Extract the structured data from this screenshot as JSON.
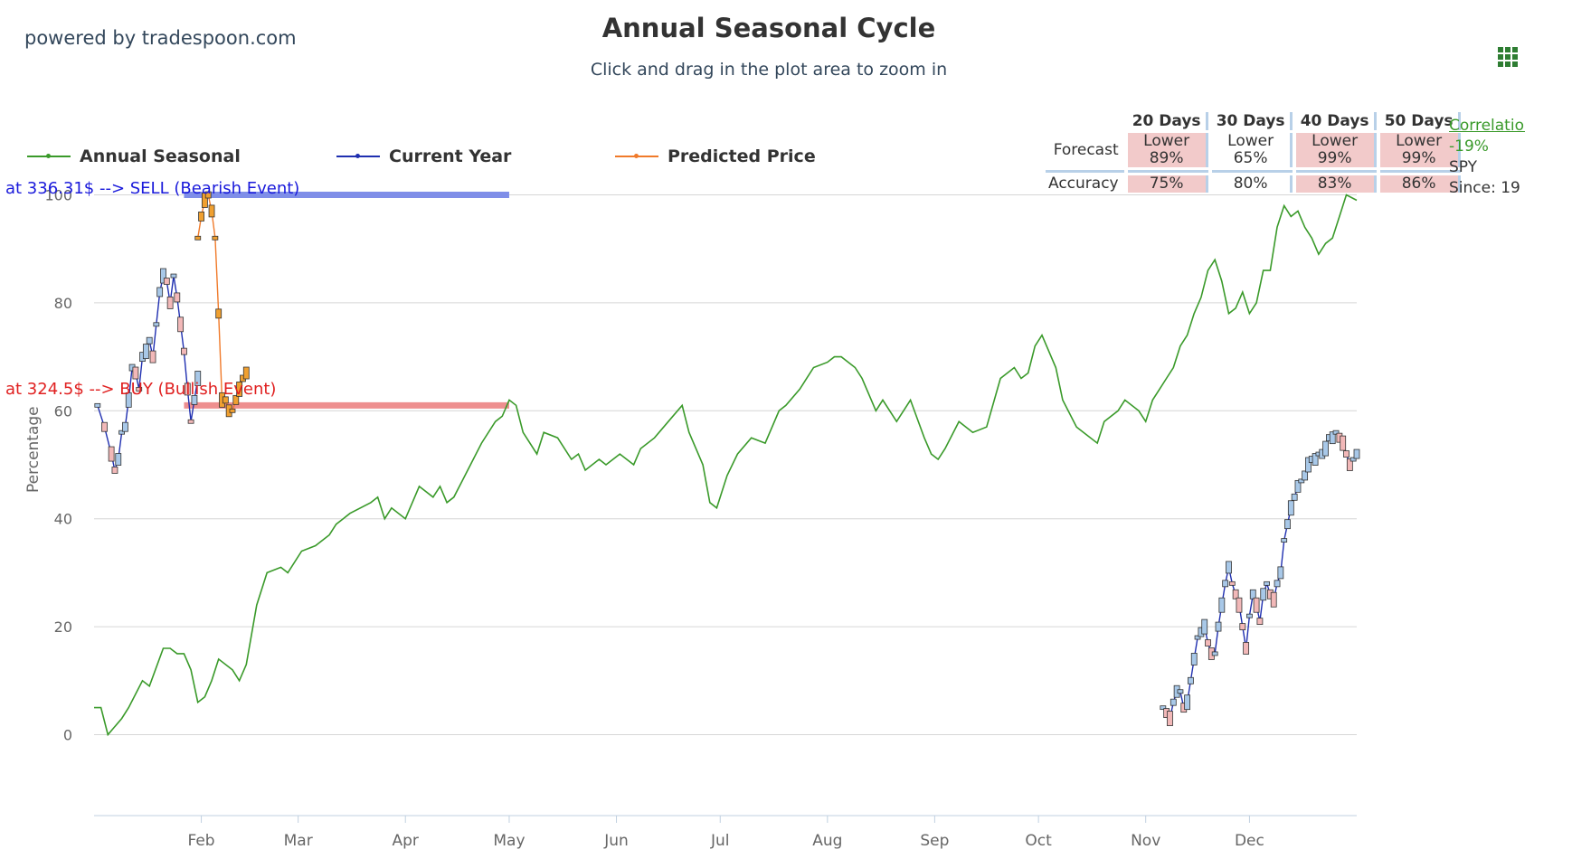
{
  "brand": "powered by tradespoon.com",
  "title": "Annual Seasonal Cycle",
  "subtitle": "Click and drag in the plot area to zoom in",
  "menu_icon": "hamburger-grid-icon",
  "legend": [
    {
      "name": "Annual Seasonal",
      "color": "#3a9a2a"
    },
    {
      "name": "Current Year",
      "color": "#1f2fb0"
    },
    {
      "name": "Predicted Price",
      "color": "#f07a2a"
    }
  ],
  "events": {
    "sell": "at 336.31$ --> SELL (Bearish Event)",
    "buy": "at 324.5$ --> BUY (Bullish Event)"
  },
  "forecast_table": {
    "headers": [
      "20 Days",
      "30 Days",
      "40 Days",
      "50 Days"
    ],
    "forecast_label": "Forecast",
    "accuracy_label": "Accuracy",
    "forecast": [
      {
        "dir": "Lower",
        "pct": "89%",
        "highlight": true
      },
      {
        "dir": "Lower",
        "pct": "65%",
        "highlight": false
      },
      {
        "dir": "Lower",
        "pct": "99%",
        "highlight": true
      },
      {
        "dir": "Lower",
        "pct": "99%",
        "highlight": true
      }
    ],
    "accuracy": [
      {
        "pct": "75%",
        "highlight": true
      },
      {
        "pct": "80%",
        "highlight": false
      },
      {
        "pct": "83%",
        "highlight": true
      },
      {
        "pct": "86%",
        "highlight": true
      }
    ]
  },
  "correlation": {
    "link": "Correlation",
    "value": "-19%",
    "ticker": "SPY",
    "since": "Since: 19"
  },
  "chart_data": {
    "type": "line",
    "title": "Annual Seasonal Cycle",
    "ylabel": "Percentage",
    "xlabel": "",
    "ylim": [
      -16,
      116
    ],
    "yticks": [
      0,
      20,
      40,
      60,
      80,
      100
    ],
    "x_domain": [
      0,
      365
    ],
    "xticks": [
      {
        "label": "Feb",
        "day": 31
      },
      {
        "label": "Mar",
        "day": 59
      },
      {
        "label": "Apr",
        "day": 90
      },
      {
        "label": "May",
        "day": 120
      },
      {
        "label": "Jun",
        "day": 151
      },
      {
        "label": "Jul",
        "day": 181
      },
      {
        "label": "Aug",
        "day": 212
      },
      {
        "label": "Sep",
        "day": 243
      },
      {
        "label": "Oct",
        "day": 273
      },
      {
        "label": "Nov",
        "day": 304
      },
      {
        "label": "Dec",
        "day": 334
      }
    ],
    "grid": true,
    "legend_position": "top",
    "series": [
      {
        "name": "Annual Seasonal",
        "color": "#3a9a2a",
        "x": [
          0,
          2,
          4,
          8,
          10,
          14,
          16,
          20,
          22,
          24,
          26,
          28,
          30,
          32,
          34,
          36,
          40,
          42,
          44,
          47,
          50,
          54,
          56,
          60,
          64,
          68,
          70,
          72,
          74,
          80,
          82,
          84,
          86,
          90,
          92,
          94,
          98,
          100,
          102,
          104,
          108,
          112,
          116,
          118,
          120,
          122,
          124,
          128,
          130,
          134,
          138,
          140,
          142,
          146,
          148,
          152,
          156,
          158,
          162,
          166,
          170,
          172,
          176,
          178,
          180,
          183,
          186,
          190,
          194,
          198,
          200,
          204,
          208,
          212,
          214,
          216,
          220,
          222,
          226,
          228,
          232,
          236,
          240,
          242,
          244,
          246,
          250,
          254,
          258,
          262,
          266,
          268,
          270,
          272,
          274,
          278,
          280,
          284,
          286,
          290,
          292,
          296,
          298,
          302,
          304,
          306,
          308,
          310,
          312,
          314,
          316,
          318,
          320,
          322,
          324,
          326,
          328,
          330,
          332,
          334,
          336,
          338,
          340,
          342,
          344,
          346,
          348,
          350,
          352,
          354,
          356,
          358,
          360,
          362,
          365
        ],
        "y": [
          5,
          5,
          0,
          3,
          5,
          10,
          9,
          16,
          16,
          15,
          15,
          12,
          6,
          7,
          10,
          14,
          12,
          10,
          13,
          24,
          30,
          31,
          30,
          34,
          35,
          37,
          39,
          40,
          41,
          43,
          44,
          40,
          42,
          40,
          43,
          46,
          44,
          46,
          43,
          44,
          49,
          54,
          58,
          59,
          62,
          61,
          56,
          52,
          56,
          55,
          51,
          52,
          49,
          51,
          50,
          52,
          50,
          53,
          55,
          58,
          61,
          56,
          50,
          43,
          42,
          48,
          52,
          55,
          54,
          60,
          61,
          64,
          68,
          69,
          70,
          70,
          68,
          66,
          60,
          62,
          58,
          62,
          55,
          52,
          51,
          53,
          58,
          56,
          57,
          66,
          68,
          66,
          67,
          72,
          74,
          68,
          62,
          57,
          56,
          54,
          58,
          60,
          62,
          60,
          58,
          62,
          64,
          66,
          68,
          72,
          74,
          78,
          81,
          86,
          88,
          84,
          78,
          79,
          82,
          78,
          80,
          86,
          86,
          94,
          98,
          96,
          97,
          94,
          92,
          89,
          91,
          92,
          96,
          100,
          99
        ]
      },
      {
        "name": "Current Year (Jan)",
        "color": "#1f2fb0",
        "x": [
          1,
          3,
          5,
          6,
          7,
          8,
          9,
          10,
          11,
          12,
          13,
          14,
          15,
          16,
          17,
          18,
          19,
          20,
          21,
          22,
          23,
          24,
          25,
          26,
          27,
          28,
          29,
          30
        ],
        "y": [
          61,
          57,
          52,
          49,
          51,
          56,
          57,
          62,
          68,
          67,
          64,
          70,
          71,
          73,
          70,
          76,
          82,
          85,
          84,
          80,
          85,
          81,
          76,
          71,
          64,
          58,
          62,
          66
        ]
      },
      {
        "name": "Current Year (Nov-Dec)",
        "color": "#1f2fb0",
        "x": [
          309,
          310,
          311,
          312,
          313,
          314,
          315,
          316,
          317,
          318,
          319,
          320,
          321,
          322,
          323,
          324,
          325,
          326,
          327,
          328,
          329,
          330,
          331,
          332,
          333,
          334,
          335,
          336,
          337,
          338,
          339,
          340,
          341,
          342,
          343,
          344,
          345,
          346,
          347,
          348,
          349,
          350,
          351,
          352,
          353,
          354,
          355,
          356,
          357,
          358,
          359,
          360,
          361,
          362,
          363,
          364,
          365
        ],
        "y": [
          5,
          4,
          3,
          6,
          8,
          8,
          5,
          6,
          10,
          14,
          18,
          19,
          20,
          17,
          15,
          15,
          20,
          24,
          28,
          31,
          28,
          26,
          24,
          20,
          16,
          22,
          26,
          24,
          21,
          26,
          28,
          26,
          25,
          28,
          30,
          36,
          39,
          42,
          44,
          46,
          47,
          48,
          50,
          51,
          51,
          52,
          52,
          53,
          55,
          55,
          56,
          55,
          54,
          52,
          50,
          51,
          52
        ]
      },
      {
        "name": "Predicted Price",
        "color": "#f07a2a",
        "x": [
          30,
          31,
          32,
          33,
          34,
          35,
          36,
          37,
          38,
          39,
          40,
          41,
          42,
          43,
          44
        ],
        "y": [
          92,
          96,
          99,
          100,
          97,
          92,
          78,
          62,
          62,
          60,
          60,
          62,
          64,
          66,
          67
        ]
      }
    ],
    "events": [
      {
        "label": "SELL",
        "price": "336.31$",
        "y": 100,
        "x_start": 26,
        "x_end": 120,
        "color": "#7f8ee8"
      },
      {
        "label": "BUY",
        "price": "324.5$",
        "y": 61,
        "x_start": 26,
        "x_end": 120,
        "color": "#ee8f8f"
      }
    ]
  }
}
